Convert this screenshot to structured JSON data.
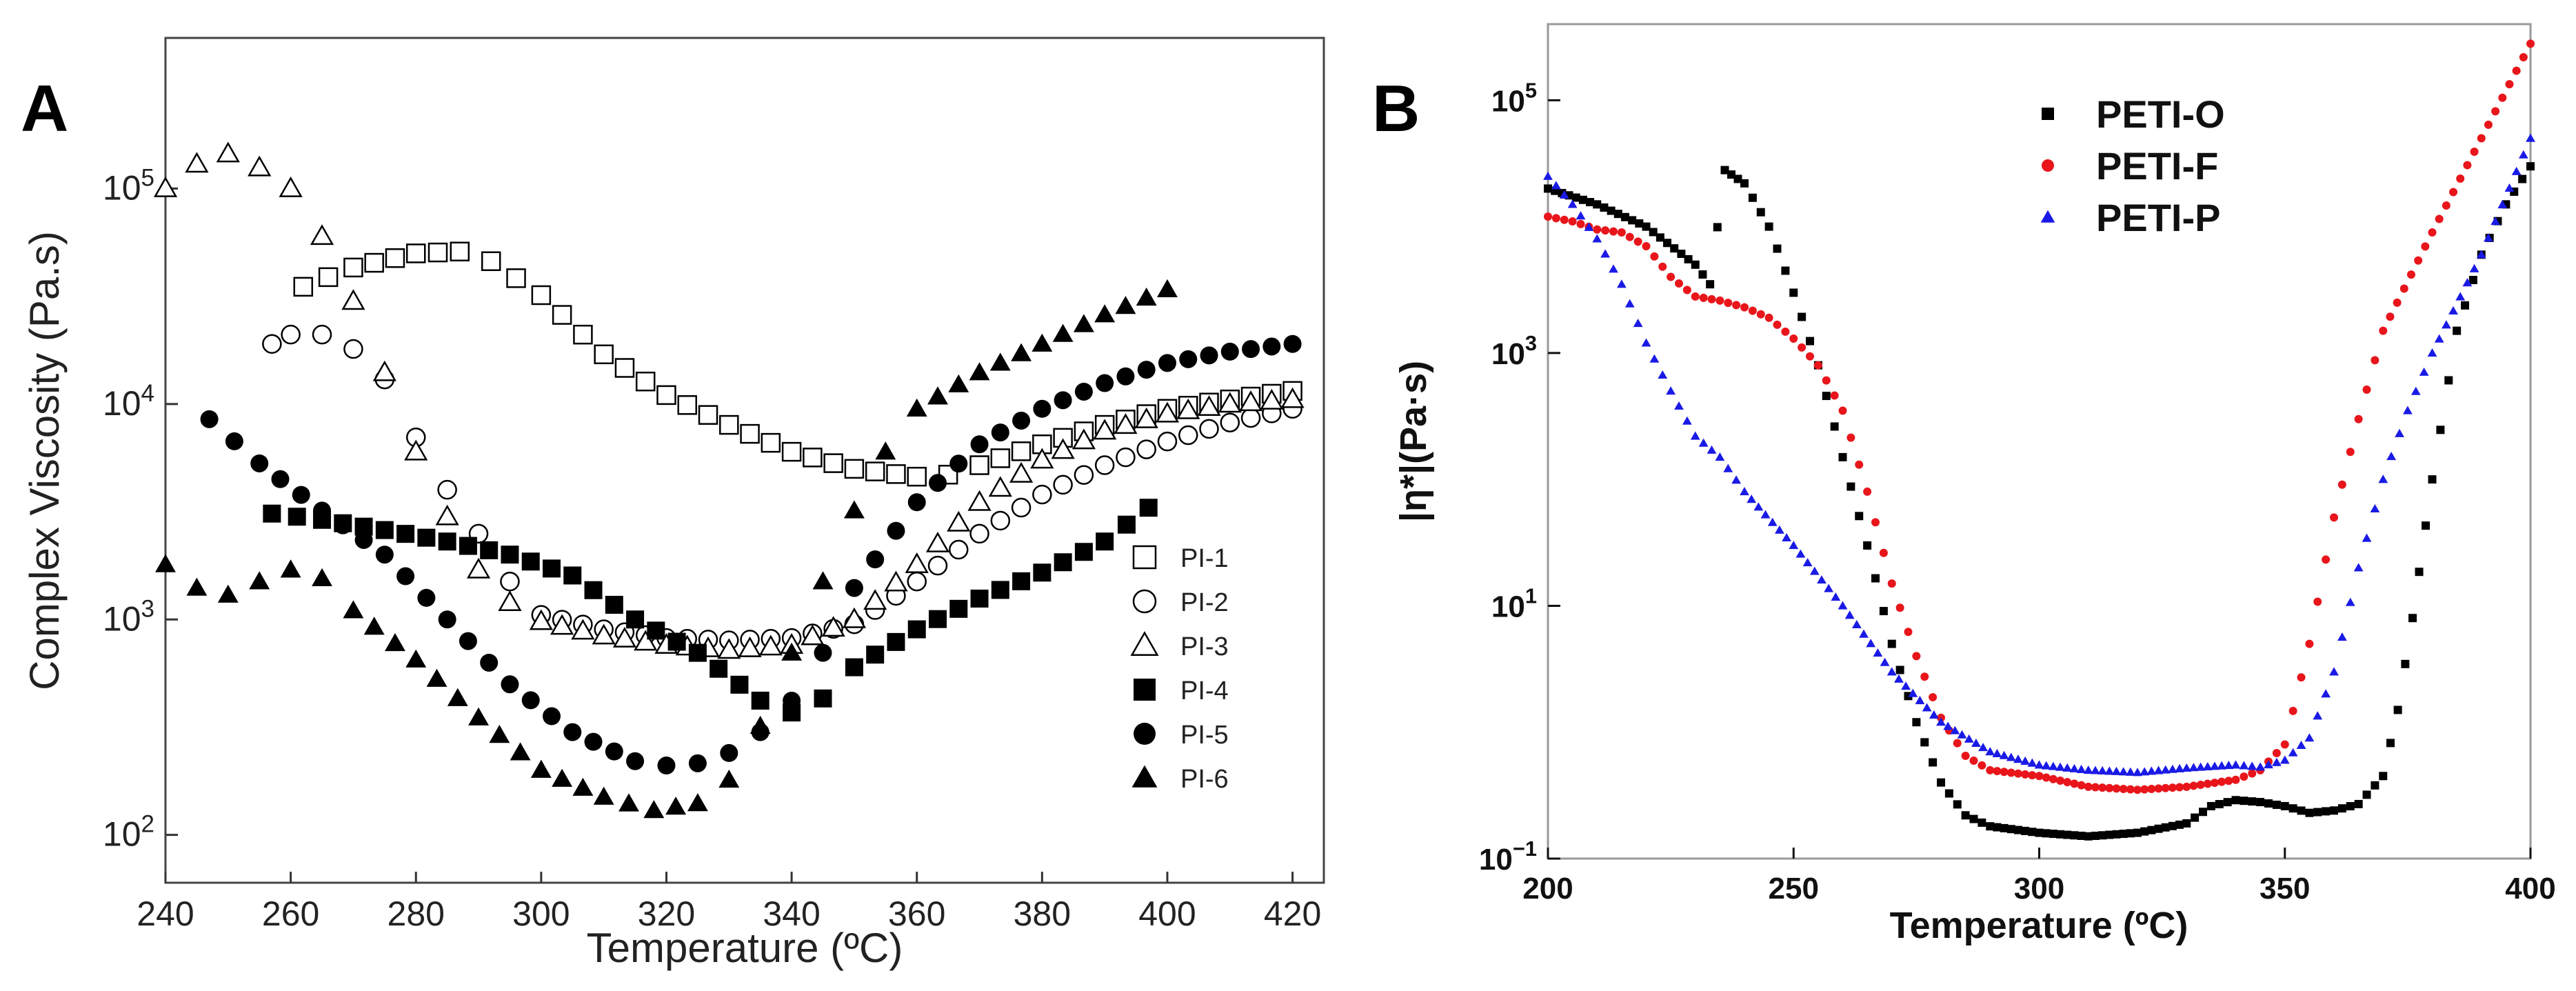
{
  "chart_data": [
    {
      "panel": "A",
      "type": "scatter",
      "xlabel": "Temperature (ºC)",
      "ylabel": "Complex Viscosity (Pa.s)",
      "xlim": [
        240,
        425
      ],
      "ylim": [
        60,
        500000
      ],
      "yscale": "log",
      "xticks": [
        240,
        260,
        280,
        300,
        320,
        340,
        360,
        380,
        400,
        420
      ],
      "yticks": [
        {
          "value": 100,
          "base": "10",
          "exp": "2"
        },
        {
          "value": 1000,
          "base": "10",
          "exp": "3"
        },
        {
          "value": 10000,
          "base": "10",
          "exp": "4"
        },
        {
          "value": 100000,
          "base": "10",
          "exp": "5"
        }
      ],
      "legend_position": "right",
      "series": [
        {
          "name": "PI-1",
          "marker": "open-square",
          "points": [
            [
              262,
              35000
            ],
            [
              270,
              43000
            ],
            [
              280,
              50000
            ],
            [
              287,
              51000
            ],
            [
              292,
              46000
            ],
            [
              300,
              32000
            ],
            [
              310,
              17000
            ],
            [
              320,
              11000
            ],
            [
              330,
              8000
            ],
            [
              340,
              6000
            ],
            [
              350,
              5000
            ],
            [
              360,
              4600
            ],
            [
              365,
              4700
            ],
            [
              370,
              5200
            ],
            [
              380,
              6500
            ],
            [
              390,
              8000
            ],
            [
              400,
              9500
            ],
            [
              410,
              10500
            ],
            [
              420,
              11500
            ]
          ]
        },
        {
          "name": "PI-2",
          "marker": "open-circle",
          "points": [
            [
              257,
              19000
            ],
            [
              260,
              21000
            ],
            [
              265,
              21000
            ],
            [
              270,
              18000
            ],
            [
              275,
              13000
            ],
            [
              280,
              7000
            ],
            [
              285,
              4000
            ],
            [
              290,
              2500
            ],
            [
              295,
              1500
            ],
            [
              300,
              1050
            ],
            [
              310,
              900
            ],
            [
              320,
              820
            ],
            [
              330,
              800
            ],
            [
              340,
              820
            ],
            [
              350,
              950
            ],
            [
              360,
              1500
            ],
            [
              370,
              2500
            ],
            [
              380,
              3800
            ],
            [
              390,
              5200
            ],
            [
              400,
              6700
            ],
            [
              410,
              8200
            ],
            [
              420,
              9500
            ]
          ]
        },
        {
          "name": "PI-3",
          "marker": "open-triangle",
          "points": [
            [
              240,
              100000
            ],
            [
              245,
              130000
            ],
            [
              250,
              145000
            ],
            [
              255,
              125000
            ],
            [
              260,
              100000
            ],
            [
              265,
              60000
            ],
            [
              270,
              30000
            ],
            [
              275,
              14000
            ],
            [
              280,
              6000
            ],
            [
              285,
              3000
            ],
            [
              290,
              1700
            ],
            [
              295,
              1200
            ],
            [
              300,
              980
            ],
            [
              310,
              840
            ],
            [
              320,
              760
            ],
            [
              330,
              720
            ],
            [
              340,
              760
            ],
            [
              350,
              1000
            ],
            [
              360,
              1800
            ],
            [
              370,
              3500
            ],
            [
              380,
              5500
            ],
            [
              390,
              7500
            ],
            [
              400,
              9000
            ],
            [
              410,
              10000
            ],
            [
              420,
              10500
            ]
          ]
        },
        {
          "name": "PI-4",
          "marker": "filled-square",
          "points": [
            [
              257,
              3100
            ],
            [
              265,
              2900
            ],
            [
              275,
              2600
            ],
            [
              285,
              2300
            ],
            [
              295,
              2000
            ],
            [
              305,
              1600
            ],
            [
              315,
              1000
            ],
            [
              325,
              700
            ],
            [
              335,
              420
            ],
            [
              340,
              370
            ],
            [
              345,
              430
            ],
            [
              350,
              600
            ],
            [
              360,
              900
            ],
            [
              370,
              1250
            ],
            [
              380,
              1650
            ],
            [
              390,
              2300
            ],
            [
              397,
              3300
            ]
          ]
        },
        {
          "name": "PI-5",
          "marker": "filled-circle",
          "points": [
            [
              247,
              8500
            ],
            [
              255,
              5300
            ],
            [
              265,
              3200
            ],
            [
              275,
              2000
            ],
            [
              285,
              1000
            ],
            [
              295,
              500
            ],
            [
              305,
              300
            ],
            [
              315,
              220
            ],
            [
              320,
              210
            ],
            [
              325,
              215
            ],
            [
              330,
              240
            ],
            [
              335,
              300
            ],
            [
              340,
              420
            ],
            [
              345,
              700
            ],
            [
              350,
              1400
            ],
            [
              360,
              3500
            ],
            [
              370,
              6500
            ],
            [
              380,
              9500
            ],
            [
              390,
              12500
            ],
            [
              400,
              15500
            ],
            [
              410,
              17500
            ],
            [
              420,
              19000
            ]
          ]
        },
        {
          "name": "PI-6",
          "marker": "filled-triangle",
          "points": [
            [
              240,
              1800
            ],
            [
              245,
              1400
            ],
            [
              250,
              1300
            ],
            [
              255,
              1500
            ],
            [
              260,
              1700
            ],
            [
              265,
              1550
            ],
            [
              270,
              1100
            ],
            [
              280,
              650
            ],
            [
              290,
              350
            ],
            [
              300,
              200
            ],
            [
              310,
              150
            ],
            [
              318,
              130
            ],
            [
              325,
              140
            ],
            [
              330,
              180
            ],
            [
              335,
              320
            ],
            [
              340,
              700
            ],
            [
              345,
              1500
            ],
            [
              350,
              3200
            ],
            [
              355,
              6000
            ],
            [
              360,
              9500
            ],
            [
              370,
              14000
            ],
            [
              380,
              19000
            ],
            [
              390,
              26000
            ],
            [
              400,
              34000
            ]
          ]
        }
      ]
    },
    {
      "panel": "B",
      "type": "scatter",
      "xlabel": "Temperature (ºC)",
      "ylabel": "|η*|(Pa·s)",
      "xlim": [
        200,
        400
      ],
      "ylim": [
        0.1,
        400000
      ],
      "yscale": "log",
      "xticks": [
        200,
        250,
        300,
        350,
        400
      ],
      "yticks": [
        {
          "value": 0.1,
          "base": "10",
          "exp": "−1"
        },
        {
          "value": 10,
          "base": "10",
          "exp": "1"
        },
        {
          "value": 1000,
          "base": "10",
          "exp": "3"
        },
        {
          "value": 100000,
          "base": "10",
          "exp": "5"
        }
      ],
      "legend_position": "top-center",
      "series": [
        {
          "name": "PETI-O",
          "color": "#000000",
          "marker": "square",
          "points": [
            [
              200,
              20000
            ],
            [
              210,
              15000
            ],
            [
              220,
              10000
            ],
            [
              230,
              5000
            ],
            [
              233,
              3500
            ],
            [
              236,
              28000
            ],
            [
              240,
              22000
            ],
            [
              245,
              10000
            ],
            [
              250,
              3000
            ],
            [
              255,
              800
            ],
            [
              260,
              150
            ],
            [
              265,
              30
            ],
            [
              270,
              5
            ],
            [
              275,
              1.2
            ],
            [
              280,
              0.4
            ],
            [
              285,
              0.22
            ],
            [
              290,
              0.18
            ],
            [
              300,
              0.16
            ],
            [
              310,
              0.15
            ],
            [
              320,
              0.16
            ],
            [
              330,
              0.19
            ],
            [
              335,
              0.26
            ],
            [
              340,
              0.29
            ],
            [
              345,
              0.28
            ],
            [
              350,
              0.26
            ],
            [
              355,
              0.23
            ],
            [
              360,
              0.24
            ],
            [
              365,
              0.27
            ],
            [
              370,
              0.45
            ],
            [
              373,
              1.5
            ],
            [
              376,
              8
            ],
            [
              380,
              100
            ],
            [
              385,
              1500
            ],
            [
              390,
              6000
            ],
            [
              395,
              15000
            ],
            [
              400,
              30000
            ]
          ]
        },
        {
          "name": "PETI-F",
          "color": "#e8151b",
          "marker": "circle",
          "points": [
            [
              200,
              12000
            ],
            [
              205,
              11000
            ],
            [
              210,
              9500
            ],
            [
              215,
              9000
            ],
            [
              220,
              7000
            ],
            [
              225,
              4000
            ],
            [
              230,
              2800
            ],
            [
              235,
              2600
            ],
            [
              240,
              2300
            ],
            [
              245,
              1900
            ],
            [
              250,
              1300
            ],
            [
              255,
              800
            ],
            [
              260,
              350
            ],
            [
              265,
              80
            ],
            [
              270,
              15
            ],
            [
              275,
              4
            ],
            [
              280,
              1.3
            ],
            [
              285,
              0.65
            ],
            [
              290,
              0.5
            ],
            [
              300,
              0.45
            ],
            [
              310,
              0.37
            ],
            [
              320,
              0.35
            ],
            [
              330,
              0.37
            ],
            [
              340,
              0.42
            ],
            [
              345,
              0.5
            ],
            [
              350,
              0.8
            ],
            [
              355,
              5
            ],
            [
              360,
              50
            ],
            [
              365,
              300
            ],
            [
              370,
              1500
            ],
            [
              380,
              9000
            ],
            [
              390,
              50000
            ],
            [
              400,
              280000
            ]
          ]
        },
        {
          "name": "PETI-P",
          "color": "#1a1ae6",
          "marker": "triangle",
          "points": [
            [
              200,
              25000
            ],
            [
              205,
              15000
            ],
            [
              210,
              8000
            ],
            [
              215,
              3500
            ],
            [
              220,
              1200
            ],
            [
              225,
              500
            ],
            [
              230,
              220
            ],
            [
              235,
              150
            ],
            [
              240,
              80
            ],
            [
              250,
              30
            ],
            [
              260,
              10
            ],
            [
              270,
              3
            ],
            [
              280,
              1.2
            ],
            [
              290,
              0.7
            ],
            [
              300,
              0.55
            ],
            [
              310,
              0.5
            ],
            [
              320,
              0.48
            ],
            [
              330,
              0.52
            ],
            [
              340,
              0.55
            ],
            [
              345,
              0.53
            ],
            [
              350,
              0.6
            ],
            [
              355,
              0.9
            ],
            [
              360,
              3
            ],
            [
              365,
              20
            ],
            [
              370,
              100
            ],
            [
              375,
              350
            ],
            [
              380,
              1000
            ],
            [
              390,
              6000
            ],
            [
              400,
              50000
            ]
          ]
        }
      ]
    }
  ]
}
